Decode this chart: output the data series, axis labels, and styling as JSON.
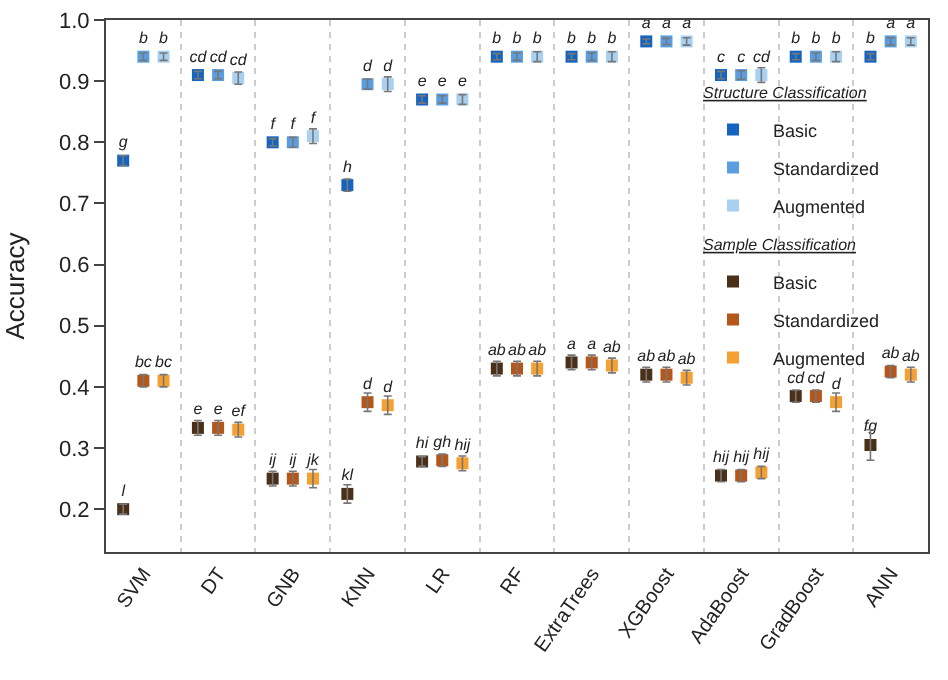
{
  "chart_data": {
    "type": "scatter",
    "ylabel": "Accuracy",
    "categories": [
      "SVM",
      "DT",
      "GNB",
      "KNN",
      "LR",
      "RF",
      "ExtraTrees",
      "XGBoost",
      "AdaBoost",
      "GradBoost",
      "ANN"
    ],
    "ylim": [
      0.13,
      1.0
    ],
    "yticks": [
      0.2,
      0.3,
      0.4,
      0.5,
      0.6,
      0.7,
      0.8,
      0.9,
      {
        "value": 1.0,
        "label": "1.0"
      }
    ],
    "legend_title": [
      "Structure Classification",
      "Sample Classification"
    ],
    "legend": "right",
    "grid": "x",
    "marker": "square",
    "series": [
      {
        "name": "Basic",
        "color": "#1565c0",
        "values": [
          0.77,
          0.91,
          0.8,
          0.73,
          0.87,
          0.94,
          0.94,
          0.965,
          0.91,
          0.94,
          0.94
        ],
        "errors": [
          0.008,
          0.006,
          0.006,
          0.01,
          0.006,
          0.005,
          0.005,
          0.004,
          0.006,
          0.005,
          0.005
        ],
        "value_labels": [
          "g",
          "cd",
          "f",
          "h",
          "e",
          "b",
          "b",
          "a",
          "c",
          "b",
          "b"
        ]
      },
      {
        "name": "Standardized",
        "color": "#5a9ee0",
        "values": [
          0.94,
          0.91,
          0.8,
          0.895,
          0.87,
          0.94,
          0.94,
          0.965,
          0.91,
          0.94,
          0.965
        ],
        "errors": [
          0.006,
          0.006,
          0.008,
          0.008,
          0.006,
          0.006,
          0.006,
          0.005,
          0.007,
          0.006,
          0.006
        ],
        "value_labels": [
          "b",
          "cd",
          "f",
          "d",
          "e",
          "b",
          "b",
          "a",
          "c",
          "b",
          "a"
        ]
      },
      {
        "name": "Augmented",
        "color": "#a8d0f0",
        "values": [
          0.94,
          0.905,
          0.81,
          0.895,
          0.87,
          0.94,
          0.94,
          0.965,
          0.91,
          0.94,
          0.965
        ],
        "errors": [
          0.006,
          0.01,
          0.012,
          0.012,
          0.008,
          0.008,
          0.008,
          0.006,
          0.012,
          0.008,
          0.006
        ],
        "value_labels": [
          "b",
          "cd",
          "f",
          "d",
          "e",
          "b",
          "b",
          "a",
          "cd",
          "b",
          "a"
        ]
      },
      {
        "name": "Basic",
        "color": "#4a3018",
        "values": [
          0.2,
          0.333,
          0.25,
          0.225,
          0.278,
          0.43,
          0.44,
          0.42,
          0.255,
          0.385,
          0.305
        ],
        "errors": [
          0.008,
          0.012,
          0.012,
          0.015,
          0.008,
          0.012,
          0.012,
          0.012,
          0.01,
          0.01,
          0.025
        ],
        "value_labels": [
          "l",
          "e",
          "ij",
          "kl",
          "hi",
          "ab",
          "a",
          "ab",
          "hij",
          "cd",
          "fg"
        ]
      },
      {
        "name": "Standardized",
        "color": "#b5561a",
        "values": [
          0.41,
          0.333,
          0.25,
          0.375,
          0.28,
          0.43,
          0.44,
          0.42,
          0.255,
          0.385,
          0.425
        ],
        "errors": [
          0.01,
          0.012,
          0.012,
          0.015,
          0.01,
          0.012,
          0.012,
          0.012,
          0.01,
          0.01,
          0.01
        ],
        "value_labels": [
          "bc",
          "e",
          "ij",
          "d",
          "gh",
          "ab",
          "a",
          "ab",
          "hij",
          "cd",
          "ab"
        ]
      },
      {
        "name": "Augmented",
        "color": "#f5a030",
        "values": [
          0.41,
          0.33,
          0.25,
          0.37,
          0.275,
          0.43,
          0.435,
          0.415,
          0.26,
          0.375,
          0.42
        ],
        "errors": [
          0.01,
          0.012,
          0.015,
          0.015,
          0.012,
          0.012,
          0.012,
          0.012,
          0.01,
          0.015,
          0.012
        ],
        "value_labels": [
          "bc",
          "ef",
          "jk",
          "d",
          "hij",
          "ab",
          "ab",
          "ab",
          "hij",
          "d",
          "ab"
        ]
      }
    ]
  }
}
